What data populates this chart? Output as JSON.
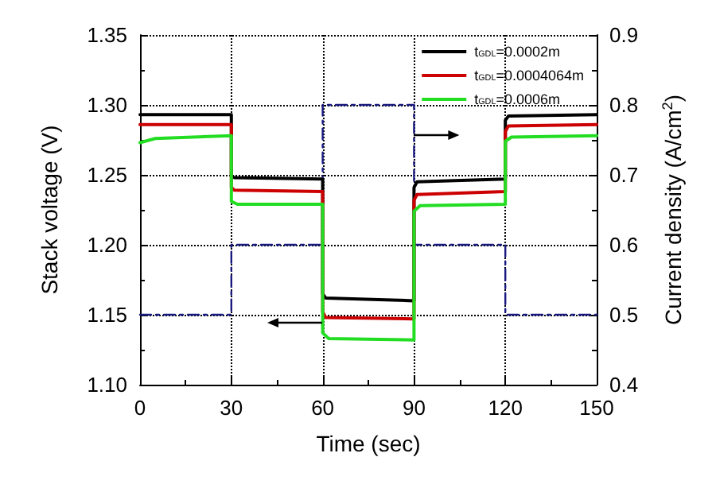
{
  "chart_data": {
    "type": "line",
    "xlabel": "Time (sec)",
    "ylabel": "Stack voltage (V)",
    "y2label": "Current density (A/cm$^{2}$)",
    "xlim": [
      0,
      150
    ],
    "xticks": [
      0,
      30,
      60,
      90,
      120,
      150
    ],
    "ylim": [
      1.1,
      1.35
    ],
    "yticks": [
      {
        "value": 1.1,
        "label": "1.10"
      },
      1.15,
      {
        "value": 1.2,
        "label": "1.20"
      },
      1.25,
      {
        "value": 1.3,
        "label": "1.30"
      },
      1.35
    ],
    "y2lim": [
      0.4,
      0.9
    ],
    "y2ticks": [
      0.4,
      0.5,
      0.6,
      0.7,
      0.8,
      0.9
    ],
    "grid": true,
    "legend": "top right",
    "marker": "none",
    "line_style": "solid",
    "series": [
      {
        "name": "t$_{GDL}$=0.0002m",
        "color": "#000000",
        "x": [
          0,
          30,
          30,
          31,
          60,
          60,
          61,
          90,
          90,
          91,
          120,
          120,
          121,
          150
        ],
        "values": [
          1.293,
          1.293,
          1.249,
          1.248,
          1.247,
          1.165,
          1.162,
          1.16,
          1.241,
          1.245,
          1.247,
          1.289,
          1.292,
          1.293
        ]
      },
      {
        "name": "t$_{GDL}$=0.0004064m",
        "color": "#cc0000",
        "x": [
          0,
          30,
          30,
          31,
          60,
          60,
          61,
          90,
          90,
          91,
          120,
          120,
          121,
          150
        ],
        "values": [
          1.286,
          1.286,
          1.241,
          1.239,
          1.238,
          1.152,
          1.148,
          1.147,
          1.232,
          1.236,
          1.238,
          1.281,
          1.285,
          1.286
        ]
      },
      {
        "name": "t$_{GDL}$=0.0006m",
        "color": "#22dd22",
        "x": [
          0,
          5,
          30,
          30,
          32,
          60,
          60,
          62,
          90,
          90,
          92,
          120,
          120,
          122,
          150
        ],
        "values": [
          1.273,
          1.276,
          1.278,
          1.231,
          1.229,
          1.229,
          1.137,
          1.133,
          1.132,
          1.224,
          1.228,
          1.229,
          1.274,
          1.277,
          1.278
        ]
      },
      {
        "color": "#1a1a80",
        "axis": "y2",
        "line_style": "dashed",
        "x": [
          0,
          30,
          30,
          60,
          60,
          90,
          90,
          120,
          120,
          150
        ],
        "values": [
          0.5,
          0.5,
          0.6,
          0.6,
          0.8,
          0.8,
          0.6,
          0.6,
          0.5,
          0.5
        ]
      }
    ]
  }
}
